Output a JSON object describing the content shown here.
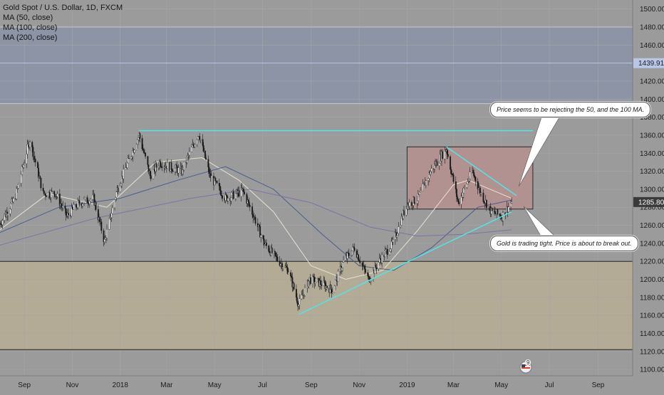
{
  "legend": {
    "title": "Gold Spot / U.S. Dollar, 1D, FXCM",
    "ma50": "MA (50, close)",
    "ma100": "MA (100, close)",
    "ma200": "MA (200, close)"
  },
  "annotations": {
    "note_top": "Price seems to be rejecting the 50, and the 100 MA.",
    "note_bottom": "Gold is trading tight. Price is about to break out."
  },
  "events_badge": "9",
  "colors": {
    "background": "#9b9b9b",
    "zone_top": "#8a93a8",
    "zone_bottom": "#b9ae96",
    "rect": "#b88e8e",
    "cyan": "#4fe6e6",
    "candle_up": "#ffffff",
    "candle_down": "#1b1b1b",
    "ma50": "#e8e2d0",
    "ma100": "#4a5f8c",
    "ma200": "#7d73a3",
    "price_label_bg": "#3a3a3a"
  },
  "chart_data": {
    "type": "candlestick",
    "title": "Gold Spot / U.S. Dollar, 1D, FXCM",
    "y_axis": {
      "ticks": [
        1100,
        1120,
        1140,
        1160,
        1180,
        1200,
        1220,
        1240,
        1260,
        1280,
        1300,
        1320,
        1340,
        1360,
        1380,
        1400,
        1420,
        1440,
        1460,
        1480,
        1500
      ],
      "tick_labels": [
        "1100.00",
        "1120.00",
        "1140.00",
        "1160.00",
        "1180.00",
        "1200.00",
        "1220.00",
        "1240.00",
        "1260.00",
        "1280.00",
        "1300.00",
        "1320.00",
        "1340.00",
        "1360.00",
        "1380.00",
        "1400.00",
        "1420.00",
        "1440.00",
        "1460.00",
        "1480.00",
        "1500.00"
      ],
      "range": [
        1093,
        1510
      ]
    },
    "x_axis": {
      "labels": [
        "Sep",
        "Nov",
        "2018",
        "Mar",
        "May",
        "Jul",
        "Sep",
        "Nov",
        "2019",
        "Mar",
        "May",
        "Jul",
        "Sep"
      ],
      "label_dates": [
        "2017-09-01",
        "2017-11-01",
        "2018-01-01",
        "2018-03-01",
        "2018-05-01",
        "2018-07-01",
        "2018-09-01",
        "2018-11-01",
        "2019-01-01",
        "2019-03-01",
        "2019-05-01",
        "2019-07-01",
        "2019-09-01"
      ],
      "range": [
        "2017-08-01",
        "2019-10-15"
      ]
    },
    "price_keypoints": [
      [
        "2017-08-01",
        1262
      ],
      [
        "2017-08-20",
        1290
      ],
      [
        "2017-09-08",
        1355
      ],
      [
        "2017-09-25",
        1295
      ],
      [
        "2017-10-10",
        1296
      ],
      [
        "2017-10-25",
        1270
      ],
      [
        "2017-11-10",
        1285
      ],
      [
        "2017-11-28",
        1290
      ],
      [
        "2017-12-12",
        1242
      ],
      [
        "2017-12-28",
        1300
      ],
      [
        "2018-01-25",
        1360
      ],
      [
        "2018-02-08",
        1315
      ],
      [
        "2018-02-20",
        1330
      ],
      [
        "2018-03-05",
        1325
      ],
      [
        "2018-03-20",
        1320
      ],
      [
        "2018-04-11",
        1362
      ],
      [
        "2018-04-25",
        1315
      ],
      [
        "2018-05-15",
        1290
      ],
      [
        "2018-06-06",
        1298
      ],
      [
        "2018-06-20",
        1270
      ],
      [
        "2018-07-03",
        1240
      ],
      [
        "2018-07-20",
        1222
      ],
      [
        "2018-08-03",
        1210
      ],
      [
        "2018-08-16",
        1172
      ],
      [
        "2018-08-30",
        1200
      ],
      [
        "2018-09-15",
        1195
      ],
      [
        "2018-09-28",
        1188
      ],
      [
        "2018-10-12",
        1220
      ],
      [
        "2018-10-26",
        1235
      ],
      [
        "2018-11-13",
        1200
      ],
      [
        "2018-11-28",
        1222
      ],
      [
        "2018-12-14",
        1240
      ],
      [
        "2018-12-31",
        1282
      ],
      [
        "2019-01-15",
        1290
      ],
      [
        "2019-01-31",
        1320
      ],
      [
        "2019-02-20",
        1345
      ],
      [
        "2019-03-07",
        1285
      ],
      [
        "2019-03-25",
        1320
      ],
      [
        "2019-04-05",
        1295
      ],
      [
        "2019-04-18",
        1275
      ],
      [
        "2019-05-02",
        1270
      ],
      [
        "2019-05-14",
        1286
      ]
    ],
    "moving_averages": [
      {
        "name": "MA (50, close)",
        "color": "#e8e2d0",
        "points": [
          [
            "2017-08-01",
            1255
          ],
          [
            "2017-10-01",
            1295
          ],
          [
            "2017-12-15",
            1280
          ],
          [
            "2018-02-15",
            1330
          ],
          [
            "2018-04-15",
            1335
          ],
          [
            "2018-06-01",
            1310
          ],
          [
            "2018-07-15",
            1275
          ],
          [
            "2018-09-01",
            1215
          ],
          [
            "2018-10-15",
            1200
          ],
          [
            "2018-12-01",
            1210
          ],
          [
            "2019-01-15",
            1255
          ],
          [
            "2019-03-01",
            1305
          ],
          [
            "2019-03-20",
            1310
          ],
          [
            "2019-05-14",
            1290
          ]
        ]
      },
      {
        "name": "MA (100, close)",
        "color": "#4a5f8c",
        "points": [
          [
            "2017-08-01",
            1252
          ],
          [
            "2017-10-15",
            1280
          ],
          [
            "2018-01-01",
            1290
          ],
          [
            "2018-03-15",
            1310
          ],
          [
            "2018-05-15",
            1325
          ],
          [
            "2018-07-15",
            1300
          ],
          [
            "2018-09-15",
            1250
          ],
          [
            "2018-11-01",
            1215
          ],
          [
            "2018-12-15",
            1210
          ],
          [
            "2019-02-01",
            1235
          ],
          [
            "2019-04-01",
            1280
          ],
          [
            "2019-05-14",
            1288
          ]
        ]
      },
      {
        "name": "MA (200, close)",
        "color": "#7d73a3",
        "points": [
          [
            "2017-08-01",
            1238
          ],
          [
            "2017-12-01",
            1268
          ],
          [
            "2018-04-01",
            1290
          ],
          [
            "2018-06-15",
            1300
          ],
          [
            "2018-09-01",
            1285
          ],
          [
            "2018-11-15",
            1258
          ],
          [
            "2019-01-15",
            1248
          ],
          [
            "2019-03-15",
            1250
          ],
          [
            "2019-05-14",
            1255
          ]
        ]
      }
    ],
    "zones": [
      {
        "from": 1395,
        "to": 1480,
        "color": "#8a93a8"
      },
      {
        "from": 1122,
        "to": 1220,
        "color": "#b9ae96"
      }
    ],
    "horizontal_lines": [
      {
        "value": 1440,
        "color": "#b9c6e6"
      },
      {
        "value": 1480,
        "color": "#c8c8c8"
      },
      {
        "value": 1395,
        "color": "#c8c8c8"
      },
      {
        "value": 1220,
        "color": "#222222"
      },
      {
        "value": 1122,
        "color": "#222222"
      }
    ],
    "rectangle": {
      "x1": "2019-01-01",
      "x2": "2019-06-10",
      "y1": 1278,
      "y2": 1347,
      "color": "#b88e8e"
    },
    "trend_lines": [
      {
        "x1": "2018-01-25",
        "y1": 1365,
        "x2": "2019-06-10",
        "y2": 1365
      },
      {
        "x1": "2018-08-16",
        "y1": 1161,
        "x2": "2019-05-14",
        "y2": 1275
      },
      {
        "x1": "2019-02-20",
        "y1": 1347,
        "x2": "2019-05-20",
        "y2": 1293
      }
    ],
    "price_marker": {
      "value": 1285.8,
      "label": "1285.80"
    },
    "level_marker": {
      "value": 1439.91,
      "label": "1439.91"
    }
  }
}
